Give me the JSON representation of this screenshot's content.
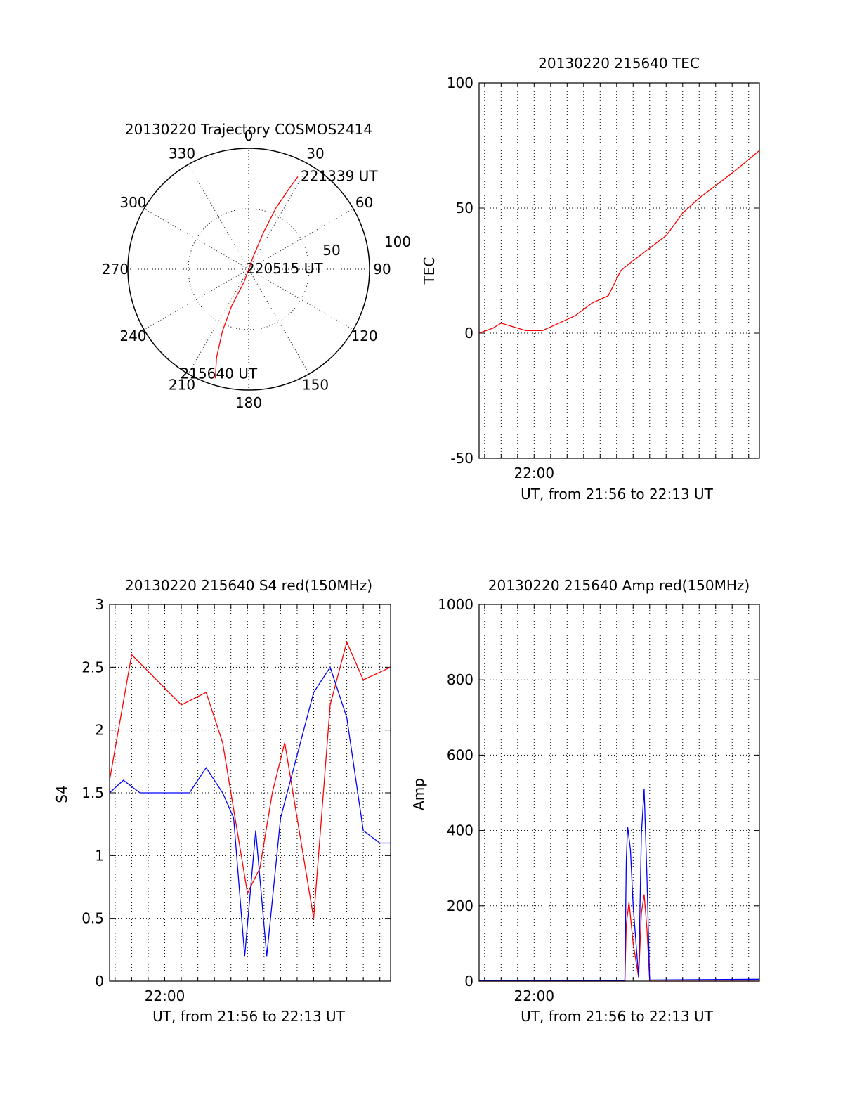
{
  "colors": {
    "red_series": "#ff0000",
    "blue_series": "#0000ff",
    "axes": "#000000",
    "background": "#ffffff"
  },
  "chart_data": [
    {
      "type": "polar",
      "title": "20130220 Trajectory COSMOS2414",
      "angle_labels": [
        "0",
        "30",
        "60",
        "90",
        "120",
        "150",
        "180",
        "210",
        "240",
        "270",
        "300",
        "330"
      ],
      "radial_labels": [
        "50",
        "100"
      ],
      "grid": true,
      "series": [
        {
          "color": "red",
          "points": [
            {
              "azimuth": 197,
              "elevation": 5
            },
            {
              "azimuth": 200,
              "elevation": 20
            },
            {
              "azimuth": 203,
              "elevation": 40
            },
            {
              "azimuth": 205,
              "elevation": 60
            },
            {
              "azimuth": 200,
              "elevation": 80
            },
            {
              "azimuth": 0,
              "elevation": 90
            },
            {
              "azimuth": 20,
              "elevation": 80
            },
            {
              "azimuth": 22,
              "elevation": 60
            },
            {
              "azimuth": 24,
              "elevation": 40
            },
            {
              "azimuth": 27,
              "elevation": 20
            },
            {
              "azimuth": 28,
              "elevation": 12
            }
          ]
        }
      ],
      "annotations": [
        {
          "text": "221339 UT",
          "azimuth": 28,
          "elevation": 12
        },
        {
          "text": "220515 UT",
          "azimuth": 0,
          "elevation": 90
        },
        {
          "text": "215640 UT",
          "azimuth": 197,
          "elevation": 5
        }
      ]
    },
    {
      "type": "line",
      "title": "20130220 215640 TEC",
      "xlabel": "UT, from 21:56 to 22:13 UT",
      "ylabel": "TEC",
      "xlim": [
        "21:56:40",
        "22:13:39"
      ],
      "ylim": [
        -50,
        100
      ],
      "yticks": [
        "100",
        "50",
        "0",
        "-50"
      ],
      "xticks": [
        "22:00"
      ],
      "grid": true,
      "series": [
        {
          "color": "red",
          "x": [
            "21:56:40",
            "21:57:30",
            "21:58:00",
            "21:59:30",
            "22:00:30",
            "22:01:30",
            "22:02:30",
            "22:03:30",
            "22:04:30",
            "22:05:15",
            "22:06:00",
            "22:07:00",
            "22:08:00",
            "22:09:00",
            "22:10:00",
            "22:11:00",
            "22:12:00",
            "22:12:45",
            "22:13:39"
          ],
          "values": [
            0,
            2,
            4,
            1,
            1,
            4,
            7,
            12,
            15,
            25,
            29,
            34,
            39,
            48,
            54,
            59,
            64,
            68,
            73
          ]
        }
      ]
    },
    {
      "type": "line",
      "title": "20130220 215640 S4 red(150MHz)",
      "xlabel": "UT, from 21:56 to 22:13 UT",
      "ylabel": "S4",
      "xlim": [
        "21:56:40",
        "22:13:39"
      ],
      "ylim": [
        0,
        3
      ],
      "yticks": [
        "3",
        "2.5",
        "2",
        "1.5",
        "1",
        "0.5",
        "0"
      ],
      "xticks": [
        "22:00"
      ],
      "grid": true,
      "series": [
        {
          "color": "red",
          "x": [
            "21:56:40",
            "21:58:00",
            "21:59:30",
            "22:01:00",
            "22:02:30",
            "22:03:30",
            "22:04:15",
            "22:05:00",
            "22:05:45",
            "22:06:30",
            "22:07:15",
            "22:08:00",
            "22:09:00",
            "22:10:00",
            "22:11:00",
            "22:12:00",
            "22:13:39"
          ],
          "values": [
            1.6,
            2.6,
            2.4,
            2.2,
            2.3,
            1.9,
            1.3,
            0.7,
            0.9,
            1.5,
            1.9,
            1.3,
            0.5,
            2.2,
            2.7,
            2.4,
            2.5
          ]
        },
        {
          "color": "blue",
          "x": [
            "21:56:40",
            "21:57:30",
            "21:58:30",
            "21:59:30",
            "22:00:30",
            "22:01:30",
            "22:02:30",
            "22:03:30",
            "22:04:10",
            "22:04:50",
            "22:05:30",
            "22:06:10",
            "22:07:00",
            "22:08:00",
            "22:09:00",
            "22:10:00",
            "22:11:00",
            "22:12:00",
            "22:13:00",
            "22:13:39"
          ],
          "values": [
            1.5,
            1.6,
            1.5,
            1.5,
            1.5,
            1.5,
            1.7,
            1.5,
            1.3,
            0.2,
            1.2,
            0.2,
            1.3,
            1.8,
            2.3,
            2.5,
            2.1,
            1.2,
            1.1,
            1.1
          ]
        }
      ]
    },
    {
      "type": "line",
      "title": "20130220 215640 Amp red(150MHz)",
      "xlabel": "UT, from 21:56 to 22:13 UT",
      "ylabel": "Amp",
      "xlim": [
        "21:56:40",
        "22:13:39"
      ],
      "ylim": [
        0,
        1000
      ],
      "yticks": [
        "1000",
        "800",
        "600",
        "400",
        "200",
        "0"
      ],
      "xticks": [
        "22:00"
      ],
      "grid": true,
      "series": [
        {
          "color": "red",
          "x": [
            "21:56:40",
            "22:05:30",
            "22:05:35",
            "22:05:45",
            "22:06:00",
            "22:06:20",
            "22:06:30",
            "22:06:40",
            "22:06:50",
            "22:07:00",
            "22:13:39"
          ],
          "values": [
            0,
            0,
            150,
            210,
            100,
            10,
            180,
            230,
            140,
            0,
            0
          ]
        },
        {
          "color": "blue",
          "x": [
            "21:56:40",
            "22:05:30",
            "22:05:35",
            "22:05:40",
            "22:05:50",
            "22:06:00",
            "22:06:20",
            "22:06:30",
            "22:06:40",
            "22:06:50",
            "22:07:00",
            "22:10:00",
            "22:13:39"
          ],
          "values": [
            2,
            2,
            320,
            410,
            350,
            200,
            10,
            390,
            510,
            280,
            3,
            4,
            5
          ]
        }
      ]
    }
  ]
}
